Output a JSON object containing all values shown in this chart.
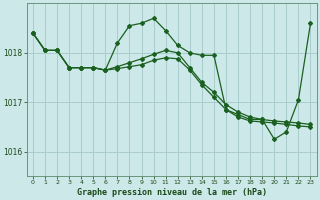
{
  "title": "Graphe pression niveau de la mer (hPa)",
  "background_color": "#cce8e8",
  "grid_color": "#aacccc",
  "line_color": "#1a6020",
  "xlim": [
    -0.5,
    23.5
  ],
  "ylim": [
    1015.5,
    1019.0
  ],
  "yticks": [
    1016,
    1017,
    1018
  ],
  "xticks": [
    0,
    1,
    2,
    3,
    4,
    5,
    6,
    7,
    8,
    9,
    10,
    11,
    12,
    13,
    14,
    15,
    16,
    17,
    18,
    19,
    20,
    21,
    22,
    23
  ],
  "series1_x": [
    0,
    1,
    2,
    3,
    4,
    5,
    6,
    7,
    8,
    9,
    10,
    11,
    12,
    13,
    14,
    15,
    16,
    17,
    18,
    19,
    20,
    21,
    22,
    23
  ],
  "series1_y": [
    1018.4,
    1018.05,
    1018.05,
    1017.7,
    1017.7,
    1017.7,
    1017.65,
    1018.2,
    1018.55,
    1018.6,
    1018.7,
    1018.45,
    1018.15,
    1018.0,
    1017.95,
    1017.95,
    1016.85,
    1016.75,
    1016.65,
    1016.65,
    1016.25,
    1016.4,
    1017.05,
    1018.6
  ],
  "series2_x": [
    0,
    1,
    2,
    3,
    4,
    5,
    6,
    7,
    8,
    9,
    10,
    11,
    12,
    13,
    14,
    15,
    16,
    17,
    18,
    19,
    20,
    21,
    22,
    23
  ],
  "series2_y": [
    1018.4,
    1018.05,
    1018.05,
    1017.7,
    1017.7,
    1017.7,
    1017.65,
    1017.72,
    1017.8,
    1017.88,
    1017.97,
    1018.05,
    1018.0,
    1017.7,
    1017.4,
    1017.2,
    1016.95,
    1016.8,
    1016.7,
    1016.65,
    1016.62,
    1016.6,
    1016.58,
    1016.55
  ],
  "series3_x": [
    0,
    1,
    2,
    3,
    4,
    5,
    6,
    7,
    8,
    9,
    10,
    11,
    12,
    13,
    14,
    15,
    16,
    17,
    18,
    19,
    20,
    21,
    22,
    23
  ],
  "series3_y": [
    1018.4,
    1018.05,
    1018.05,
    1017.7,
    1017.7,
    1017.7,
    1017.65,
    1017.68,
    1017.72,
    1017.76,
    1017.85,
    1017.9,
    1017.88,
    1017.65,
    1017.35,
    1017.1,
    1016.85,
    1016.7,
    1016.62,
    1016.6,
    1016.58,
    1016.55,
    1016.52,
    1016.5
  ]
}
